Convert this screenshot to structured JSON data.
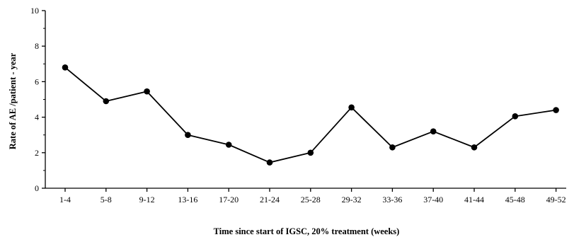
{
  "chart_data": {
    "type": "line",
    "title": "",
    "xlabel": "Time since start of IGSC, 20% treatment (weeks)",
    "ylabel": "Rate of AE /patient - year",
    "ylim": [
      0,
      10
    ],
    "yticks": [
      0,
      2,
      4,
      6,
      8,
      10
    ],
    "grid": false,
    "legend": "none",
    "categories": [
      "1-4",
      "5-8",
      "9-12",
      "13-16",
      "17-20",
      "21-24",
      "25-28",
      "29-32",
      "33-36",
      "37-40",
      "41-44",
      "45-48",
      "49-52"
    ],
    "series": [
      {
        "values": [
          6.8,
          4.9,
          5.45,
          3.0,
          2.45,
          1.45,
          2.0,
          4.55,
          2.3,
          3.2,
          2.3,
          4.05,
          4.4
        ],
        "color": "#000000"
      }
    ]
  }
}
